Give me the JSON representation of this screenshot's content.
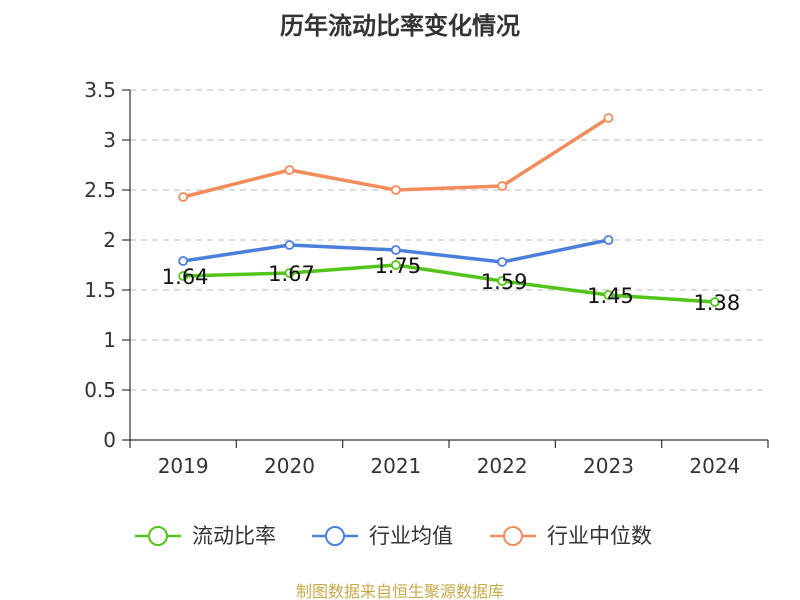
{
  "chart_data": {
    "type": "line",
    "title": "历年流动比率变化情况",
    "categories": [
      "2019",
      "2020",
      "2021",
      "2022",
      "2023",
      "2024"
    ],
    "ylim": [
      0,
      3.5
    ],
    "yticks": [
      "0",
      "0.5",
      "1",
      "1.5",
      "2",
      "2.5",
      "3",
      "3.5"
    ],
    "grid": true,
    "legend_position": "bottom",
    "series": [
      {
        "name": "流动比率",
        "color": "#52c41a",
        "values": [
          1.64,
          1.67,
          1.75,
          1.59,
          1.45,
          1.38
        ],
        "labels": [
          "1.64",
          "1.67",
          "1.75",
          "1.59",
          "1.45",
          "1.38"
        ]
      },
      {
        "name": "行业均值",
        "color": "#4a7fdc",
        "values": [
          1.79,
          1.95,
          1.9,
          1.78,
          2.0,
          null
        ]
      },
      {
        "name": "行业中位数",
        "color": "#f28c5a",
        "values": [
          2.43,
          2.7,
          2.5,
          2.54,
          3.22,
          null
        ]
      }
    ]
  },
  "source_note": "制图数据来自恒生聚源数据库"
}
